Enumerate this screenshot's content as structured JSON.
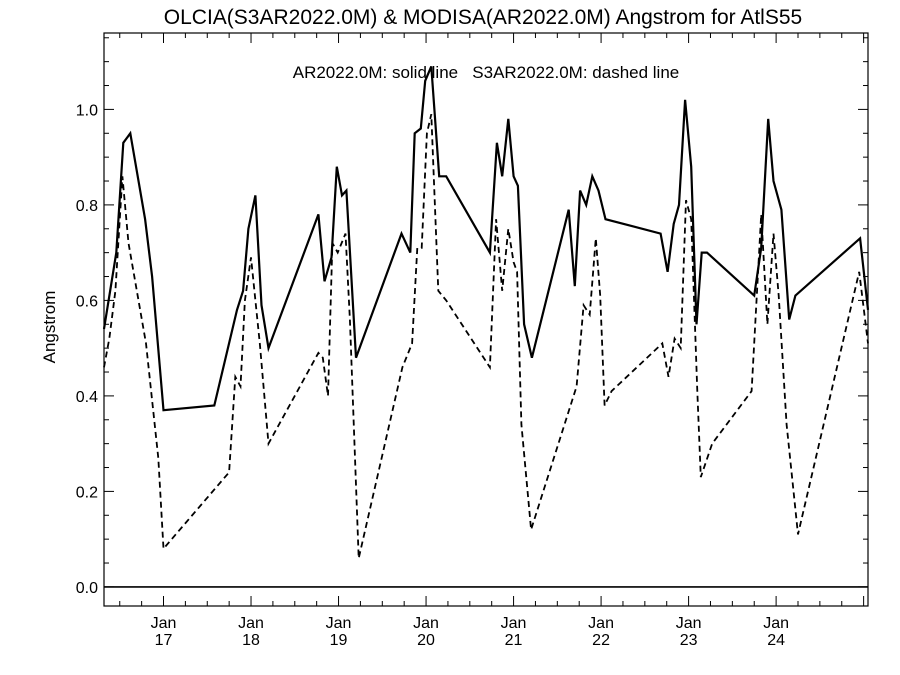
{
  "chart_data": {
    "type": "line",
    "title": "OLCIA(S3AR2022.0M) & MODISA(AR2022.0M)  Angstrom for AtlS55",
    "legend_text": "AR2022.0M: solid line   S3AR2022.0M: dashed line",
    "xlabel": "",
    "ylabel": "Angstrom",
    "xlim": [
      2016.32,
      2025.05
    ],
    "ylim": [
      -0.04,
      1.16
    ],
    "zero_line": true,
    "grid": false,
    "x_ticks": [
      {
        "value": 2017.0,
        "line1": "Jan",
        "line2": "17"
      },
      {
        "value": 2018.0,
        "line1": "Jan",
        "line2": "18"
      },
      {
        "value": 2019.0,
        "line1": "Jan",
        "line2": "19"
      },
      {
        "value": 2020.0,
        "line1": "Jan",
        "line2": "20"
      },
      {
        "value": 2021.0,
        "line1": "Jan",
        "line2": "21"
      },
      {
        "value": 2022.0,
        "line1": "Jan",
        "line2": "22"
      },
      {
        "value": 2023.0,
        "line1": "Jan",
        "line2": "23"
      },
      {
        "value": 2024.0,
        "line1": "Jan",
        "line2": "24"
      }
    ],
    "y_ticks": [
      {
        "value": 0.0,
        "label": "0.0"
      },
      {
        "value": 0.2,
        "label": "0.2"
      },
      {
        "value": 0.4,
        "label": "0.4"
      },
      {
        "value": 0.6,
        "label": "0.6"
      },
      {
        "value": 0.8,
        "label": "0.8"
      },
      {
        "value": 1.0,
        "label": "1.0"
      }
    ],
    "series": [
      {
        "name": "AR2022.0M",
        "style": "solid",
        "color": "#000000",
        "x": [
          2016.32,
          2016.46,
          2016.54,
          2016.62,
          2016.79,
          2016.87,
          2017.0,
          2017.58,
          2017.84,
          2017.91,
          2017.97,
          2018.05,
          2018.12,
          2018.2,
          2018.77,
          2018.84,
          2018.92,
          2018.98,
          2019.04,
          2019.09,
          2019.2,
          2019.72,
          2019.82,
          2019.87,
          2019.94,
          2019.99,
          2020.06,
          2020.15,
          2020.23,
          2020.73,
          2020.81,
          2020.87,
          2020.94,
          2021.0,
          2021.05,
          2021.12,
          2021.21,
          2021.63,
          2021.7,
          2021.76,
          2021.83,
          2021.9,
          2021.97,
          2022.05,
          2022.68,
          2022.76,
          2022.83,
          2022.89,
          2022.96,
          2023.03,
          2023.09,
          2023.15,
          2023.21,
          2023.75,
          2023.83,
          2023.91,
          2023.97,
          2024.06,
          2024.15,
          2024.22,
          2024.96,
          2025.05
        ],
        "y": [
          0.54,
          0.7,
          0.93,
          0.95,
          0.77,
          0.65,
          0.37,
          0.38,
          0.58,
          0.62,
          0.75,
          0.82,
          0.59,
          0.5,
          0.78,
          0.64,
          0.69,
          0.88,
          0.82,
          0.83,
          0.48,
          0.74,
          0.7,
          0.95,
          0.96,
          1.06,
          1.09,
          0.86,
          0.86,
          0.7,
          0.93,
          0.86,
          0.98,
          0.86,
          0.84,
          0.55,
          0.48,
          0.79,
          0.63,
          0.83,
          0.8,
          0.86,
          0.83,
          0.77,
          0.74,
          0.66,
          0.76,
          0.8,
          1.02,
          0.88,
          0.55,
          0.7,
          0.7,
          0.61,
          0.71,
          0.98,
          0.85,
          0.79,
          0.56,
          0.61,
          0.73,
          0.58
        ]
      },
      {
        "name": "S3AR2022.0M",
        "style": "dashed",
        "color": "#000000",
        "x": [
          2016.32,
          2016.38,
          2016.45,
          2016.53,
          2016.6,
          2016.8,
          2016.94,
          2017.0,
          2017.75,
          2017.82,
          2017.88,
          2017.93,
          2018.0,
          2018.05,
          2018.1,
          2018.2,
          2018.77,
          2018.82,
          2018.88,
          2018.93,
          2018.99,
          2019.08,
          2019.13,
          2019.23,
          2019.73,
          2019.84,
          2019.9,
          2019.95,
          2020.01,
          2020.06,
          2020.14,
          2020.23,
          2020.73,
          2020.8,
          2020.87,
          2020.94,
          2021.0,
          2021.04,
          2021.09,
          2021.2,
          2021.72,
          2021.8,
          2021.87,
          2021.94,
          2021.99,
          2022.04,
          2022.12,
          2022.7,
          2022.77,
          2022.84,
          2022.91,
          2022.97,
          2023.03,
          2023.1,
          2023.14,
          2023.27,
          2023.72,
          2023.83,
          2023.9,
          2023.97,
          2024.03,
          2024.12,
          2024.25,
          2024.95,
          2025.05
        ],
        "y": [
          0.46,
          0.52,
          0.62,
          0.86,
          0.72,
          0.51,
          0.27,
          0.08,
          0.24,
          0.44,
          0.42,
          0.6,
          0.69,
          0.6,
          0.51,
          0.3,
          0.49,
          0.48,
          0.4,
          0.72,
          0.7,
          0.74,
          0.56,
          0.06,
          0.46,
          0.51,
          0.71,
          0.71,
          0.95,
          0.99,
          0.62,
          0.6,
          0.46,
          0.77,
          0.62,
          0.75,
          0.68,
          0.66,
          0.34,
          0.12,
          0.42,
          0.59,
          0.57,
          0.73,
          0.61,
          0.38,
          0.41,
          0.51,
          0.44,
          0.52,
          0.5,
          0.81,
          0.77,
          0.41,
          0.23,
          0.3,
          0.41,
          0.78,
          0.55,
          0.74,
          0.61,
          0.34,
          0.11,
          0.66,
          0.51
        ]
      }
    ]
  }
}
